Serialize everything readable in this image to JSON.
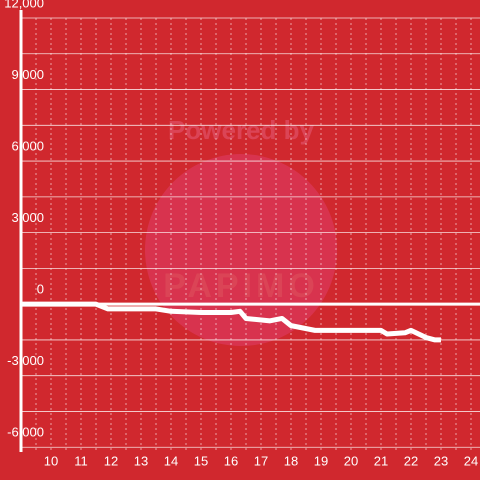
{
  "chart_data": {
    "type": "line",
    "watermark": [
      "Powered by",
      "PAPIMO"
    ],
    "xlim": [
      9,
      24.3
    ],
    "ylim": [
      -6200,
      12000
    ],
    "xticks": [
      10,
      11,
      12,
      13,
      14,
      15,
      16,
      17,
      18,
      19,
      20,
      21,
      22,
      23,
      24
    ],
    "minor_xticks": [
      9.5,
      10.5,
      11.5,
      12.5,
      13.5,
      14.5,
      15.5,
      16.5,
      17.5,
      18.5,
      19.5,
      20.5,
      21.5,
      22.5,
      23.5
    ],
    "yticks": [
      {
        "value": -6000,
        "label": "-6,000"
      },
      {
        "value": -3000,
        "label": "-3,000"
      },
      0,
      {
        "value": 3000,
        "label": "3,000"
      },
      {
        "value": 6000,
        "label": "6,000"
      },
      {
        "value": 9000,
        "label": "9,000"
      },
      {
        "value": 12000,
        "label": "12,000"
      }
    ],
    "minor_yticks": [
      -4500,
      -1500,
      1500,
      4500,
      7500,
      10500
    ],
    "grid": true,
    "background": "#d0282e",
    "series": [
      {
        "color": "#ffffff",
        "x": [
          9,
          11.5,
          11.9,
          13.5,
          14,
          15,
          16,
          16.3,
          16.5,
          17.3,
          17.7,
          18,
          18.8,
          21,
          21.2,
          21.8,
          22,
          22.5,
          22.8,
          23
        ],
        "values": [
          0,
          0,
          -200,
          -200,
          -300,
          -350,
          -350,
          -300,
          -600,
          -700,
          -600,
          -900,
          -1100,
          -1100,
          -1250,
          -1200,
          -1100,
          -1400,
          -1500,
          -1500
        ]
      }
    ]
  }
}
